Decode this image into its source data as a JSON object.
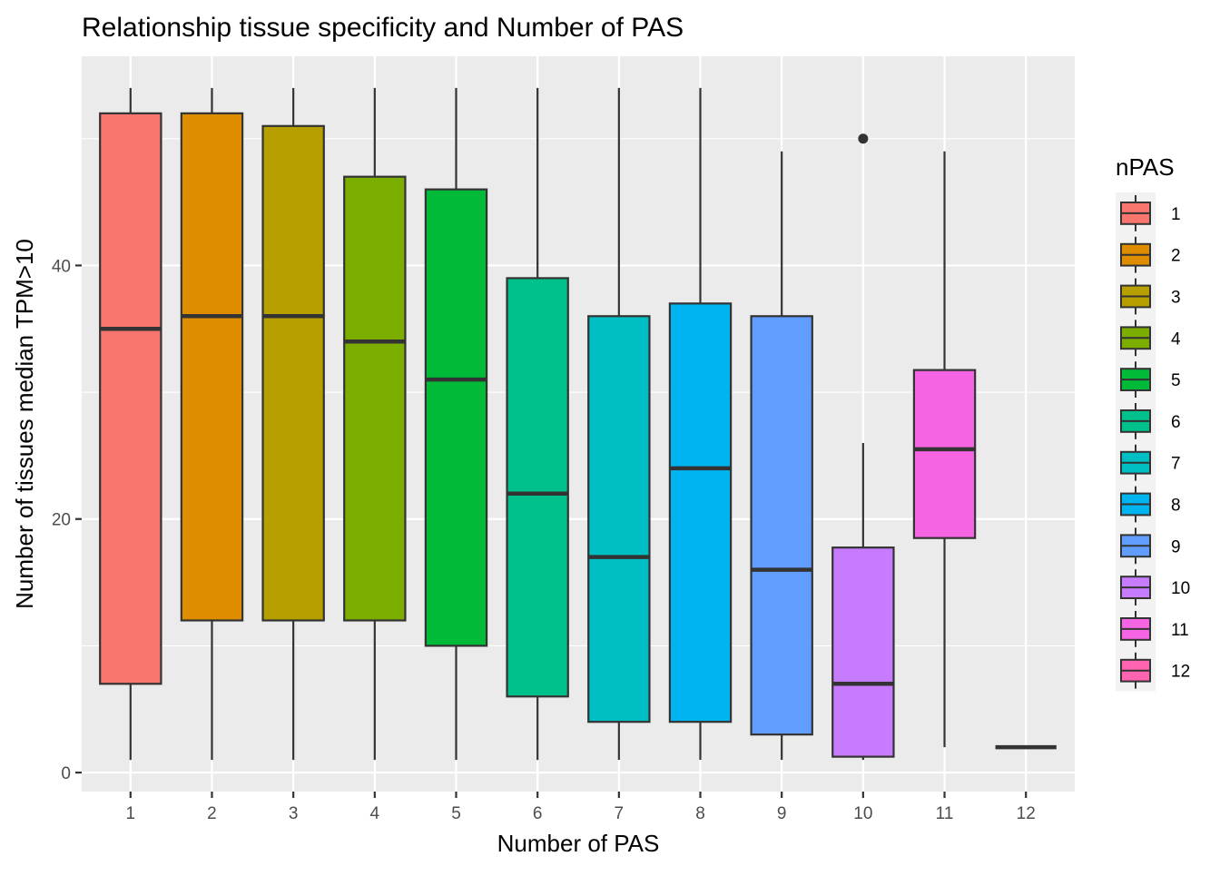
{
  "chart_data": {
    "type": "boxplot",
    "title": "Relationship tissue specificity and Number of PAS",
    "xlabel": "Number of PAS",
    "ylabel": "Number of tissues median TPM>10",
    "ylim": [
      -1.5,
      56.5
    ],
    "yticks": [
      0,
      20,
      40
    ],
    "grid": true,
    "legend": {
      "title": "nPAS",
      "position": "right"
    },
    "categories": [
      "1",
      "2",
      "3",
      "4",
      "5",
      "6",
      "7",
      "8",
      "9",
      "10",
      "11",
      "12"
    ],
    "boxes": [
      {
        "x": "1",
        "whisker_low": 1,
        "q1": 7,
        "median": 35,
        "q3": 52,
        "whisker_high": 54,
        "outliers": [],
        "color": "#F8766D"
      },
      {
        "x": "2",
        "whisker_low": 1,
        "q1": 12,
        "median": 36,
        "q3": 52,
        "whisker_high": 54,
        "outliers": [],
        "color": "#DE8C00"
      },
      {
        "x": "3",
        "whisker_low": 1,
        "q1": 12,
        "median": 36,
        "q3": 51,
        "whisker_high": 54,
        "outliers": [],
        "color": "#B79F00"
      },
      {
        "x": "4",
        "whisker_low": 1,
        "q1": 12,
        "median": 34,
        "q3": 47,
        "whisker_high": 54,
        "outliers": [],
        "color": "#7CAE00"
      },
      {
        "x": "5",
        "whisker_low": 1,
        "q1": 10,
        "median": 31,
        "q3": 46,
        "whisker_high": 54,
        "outliers": [],
        "color": "#00BA38"
      },
      {
        "x": "6",
        "whisker_low": 1,
        "q1": 6,
        "median": 22,
        "q3": 39,
        "whisker_high": 54,
        "outliers": [],
        "color": "#00C08B"
      },
      {
        "x": "7",
        "whisker_low": 1,
        "q1": 4,
        "median": 17,
        "q3": 36,
        "whisker_high": 54,
        "outliers": [],
        "color": "#00BFC4"
      },
      {
        "x": "8",
        "whisker_low": 1,
        "q1": 4,
        "median": 24,
        "q3": 37,
        "whisker_high": 54,
        "outliers": [],
        "color": "#00B4F0"
      },
      {
        "x": "9",
        "whisker_low": 1,
        "q1": 3,
        "median": 16,
        "q3": 36,
        "whisker_high": 49,
        "outliers": [],
        "color": "#619CFF"
      },
      {
        "x": "10",
        "whisker_low": 1,
        "q1": 1.25,
        "median": 7,
        "q3": 17.75,
        "whisker_high": 26,
        "outliers": [
          50
        ],
        "color": "#C77CFF"
      },
      {
        "x": "11",
        "whisker_low": 2,
        "q1": 18.5,
        "median": 25.5,
        "q3": 31.75,
        "whisker_high": 49,
        "outliers": [],
        "color": "#F564E3"
      },
      {
        "x": "12",
        "whisker_low": 2,
        "q1": 2,
        "median": 2,
        "q3": 2,
        "whisker_high": 2,
        "outliers": [],
        "color": "#FF64B0"
      }
    ]
  }
}
